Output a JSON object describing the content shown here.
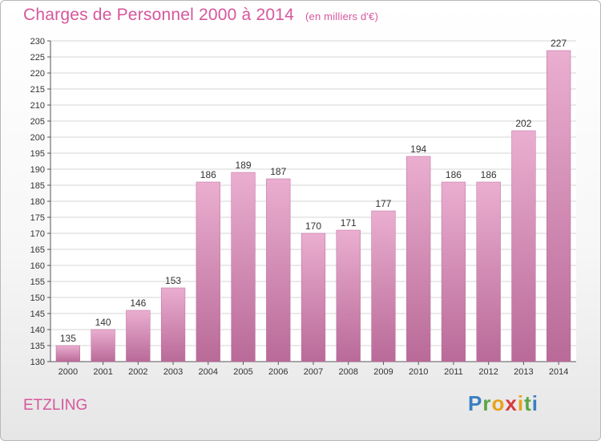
{
  "header": {
    "title": "Charges de Personnel 2000 à 2014",
    "subtitle": "(en milliers d'€)"
  },
  "footer": {
    "commune": "ETZLING",
    "logo": {
      "letters": [
        "P",
        "r",
        "o",
        "x",
        "i",
        "t",
        "i"
      ],
      "colors": [
        "#3a7fc2",
        "#5aa544",
        "#e8a21c",
        "#d83a3a",
        "#e8a21c",
        "#5aa544",
        "#3a7fc2"
      ]
    }
  },
  "chart_data": {
    "type": "bar",
    "title": "Charges de Personnel 2000 à 2014",
    "subtitle": "(en milliers d'€)",
    "categories": [
      "2000",
      "2001",
      "2002",
      "2003",
      "2004",
      "2005",
      "2006",
      "2007",
      "2008",
      "2009",
      "2010",
      "2011",
      "2012",
      "2013",
      "2014"
    ],
    "values": [
      135,
      140,
      146,
      153,
      186,
      189,
      187,
      170,
      171,
      177,
      194,
      186,
      186,
      202,
      227
    ],
    "ylim": [
      130,
      230
    ],
    "ytick_step": 5,
    "grid": true,
    "bar_color": "#d98ab6",
    "bar_color_light": "#eaaed0",
    "bar_color_dark": "#b96a98"
  }
}
